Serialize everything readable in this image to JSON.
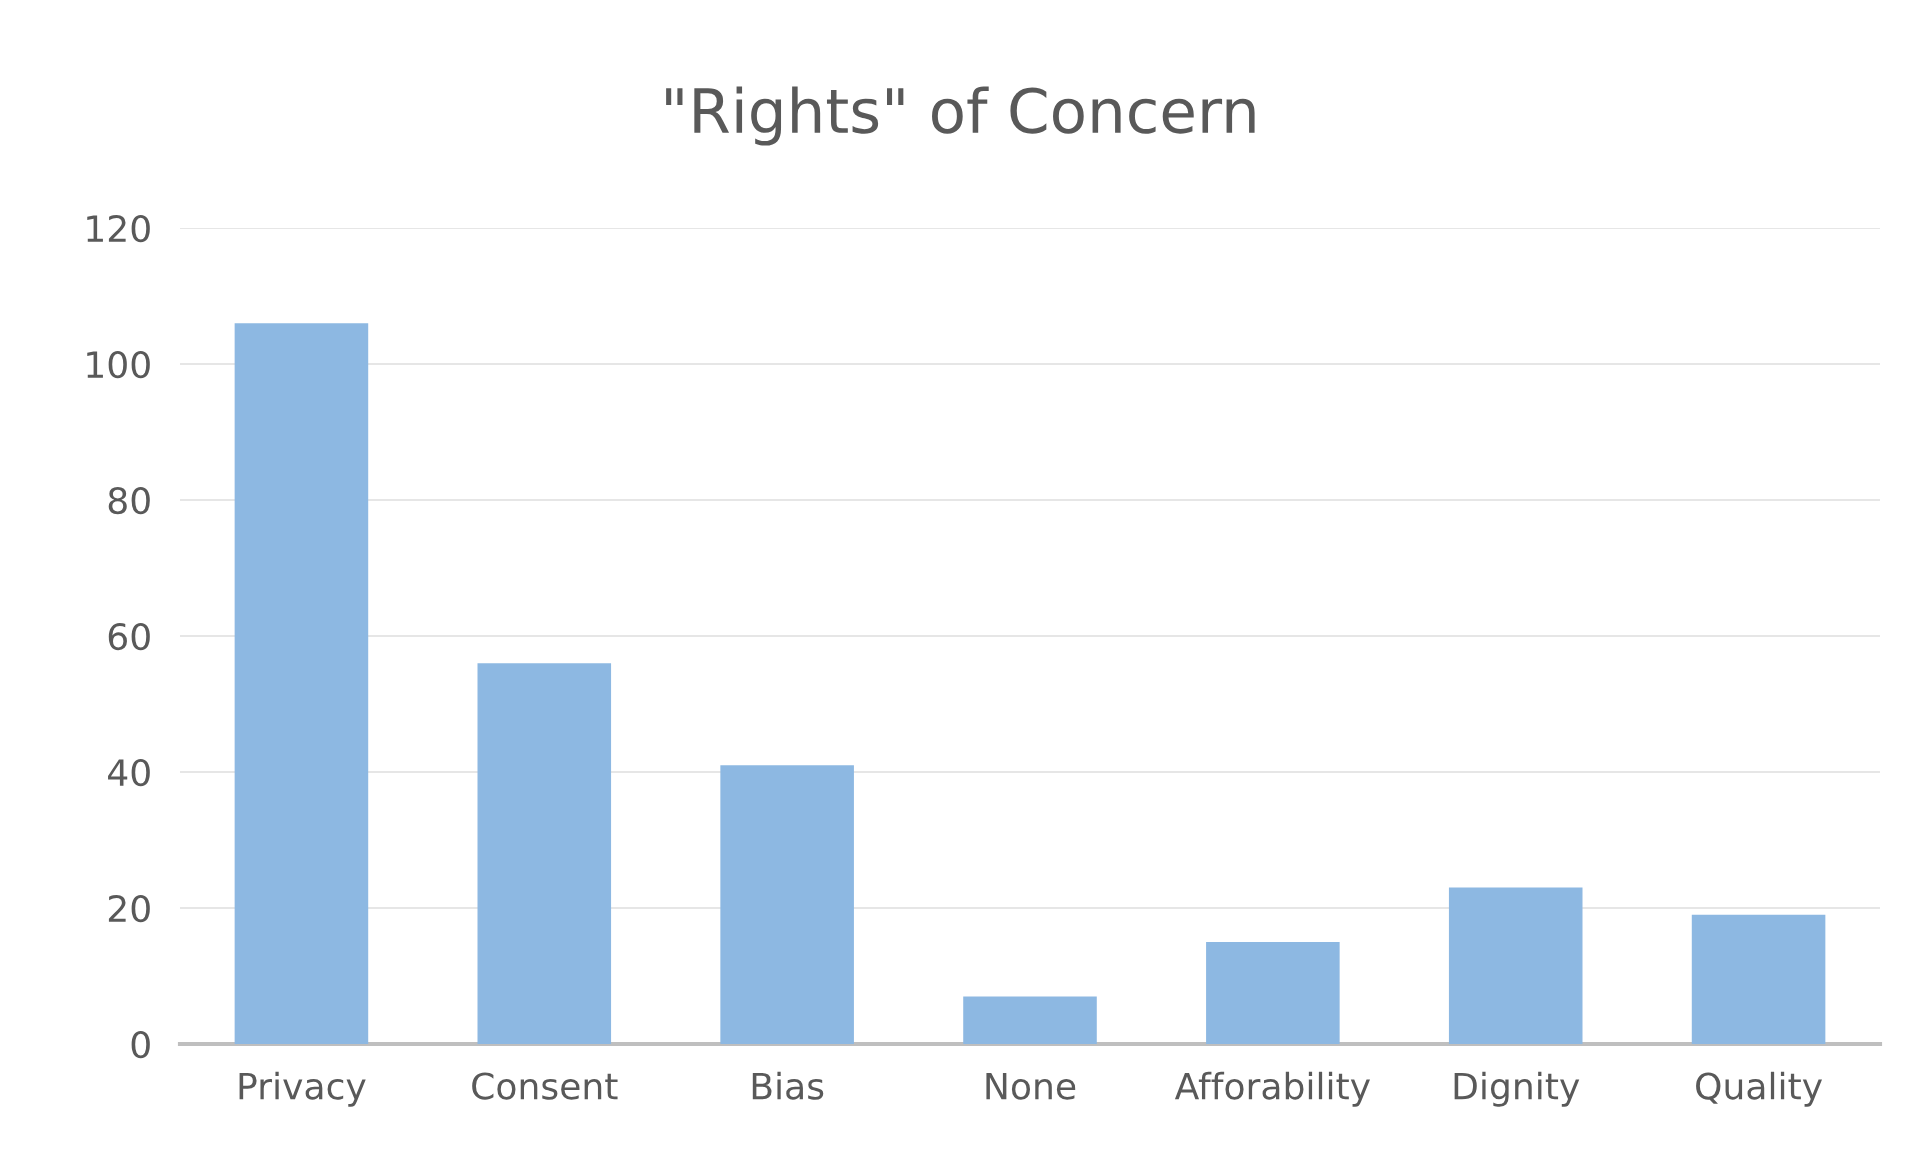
{
  "chart_data": {
    "type": "bar",
    "title": "\"Rights\" of Concern",
    "categories": [
      "Privacy",
      "Consent",
      "Bias",
      "None",
      "Afforability",
      "Dignity",
      "Quality"
    ],
    "values": [
      106,
      56,
      41,
      7,
      15,
      23,
      19
    ],
    "color": "#8db8e2",
    "ylim": [
      0,
      120
    ],
    "yticks": [
      0,
      20,
      40,
      60,
      80,
      100,
      120
    ],
    "grid": "y",
    "legend": false
  }
}
